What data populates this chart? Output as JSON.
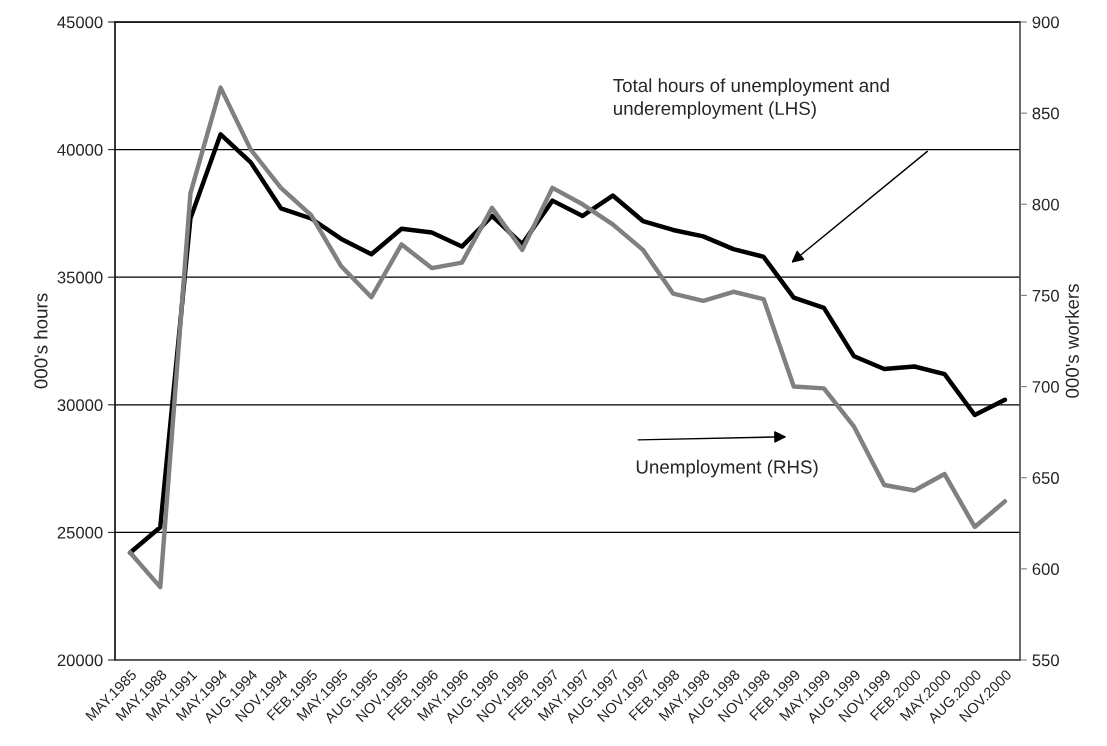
{
  "chart_data": {
    "type": "line",
    "categories": [
      "MAY.1985",
      "MAY.1988",
      "MAY.1991",
      "MAY.1994",
      "AUG.1994",
      "NOV.1994",
      "FEB.1995",
      "MAY.1995",
      "AUG.1995",
      "NOV.1995",
      "FEB.1996",
      "MAY.1996",
      "AUG.1996",
      "NOV.1996",
      "FEB.1997",
      "MAY.1997",
      "AUG.1997",
      "NOV.1997",
      "FEB.1998",
      "MAY.1998",
      "AUG.1998",
      "NOV.1998",
      "FEB.1999",
      "MAY.1999",
      "AUG.1999",
      "NOV.1999",
      "FEB.2000",
      "MAY.2000",
      "AUG.2000",
      "NOV.2000"
    ],
    "series": [
      {
        "color": "#000000",
        "values": [
          24200,
          25200,
          37300,
          40600,
          39500,
          37700,
          37300,
          36500,
          35900,
          36900,
          36750,
          36200,
          37400,
          36300,
          38000,
          37400,
          38200,
          37200,
          36850,
          36600,
          36100,
          35800,
          34200,
          33800,
          31900,
          31400,
          31500,
          31200,
          29600,
          30200
        ]
      },
      {
        "color": "#808080",
        "axis": "y2",
        "values": [
          609,
          590,
          806,
          864,
          830,
          809,
          794,
          766,
          749,
          778,
          765,
          768,
          798,
          775,
          809,
          800,
          789,
          775,
          751,
          747,
          752,
          748,
          700,
          699,
          678,
          646,
          643,
          652,
          623,
          637
        ]
      }
    ],
    "annotations": [
      "Total hours of unemployment and\nunderemployment (LHS)",
      "Unemployment (RHS)"
    ],
    "ylabel": "000's hours",
    "y2label": "000's workers",
    "ylim": [
      20000,
      45000
    ],
    "yticks": [
      20000,
      25000,
      30000,
      35000,
      40000,
      45000
    ],
    "y2lim": [
      550,
      900
    ],
    "y2ticks": [
      550,
      600,
      650,
      700,
      750,
      800,
      850,
      900
    ],
    "grid": "y",
    "legend": false,
    "marker": "none",
    "line_style": "solid"
  }
}
